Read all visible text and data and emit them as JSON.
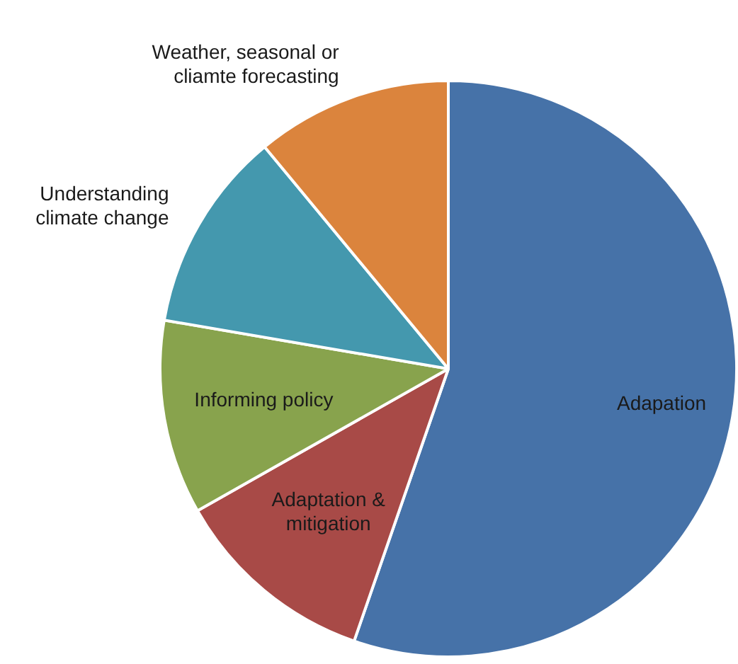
{
  "chart_data": {
    "type": "pie",
    "categories": [
      "Adapation",
      "Adaptation & mitigation",
      "Informing policy",
      "Understanding climate change",
      "Weather, seasonal or cliamte forecasting"
    ],
    "values": [
      55.3,
      11.5,
      10.9,
      11.3,
      11
    ],
    "colors": [
      "#4672a8",
      "#a84a47",
      "#88a34d",
      "#4498ae",
      "#db843d"
    ],
    "legend": false
  }
}
